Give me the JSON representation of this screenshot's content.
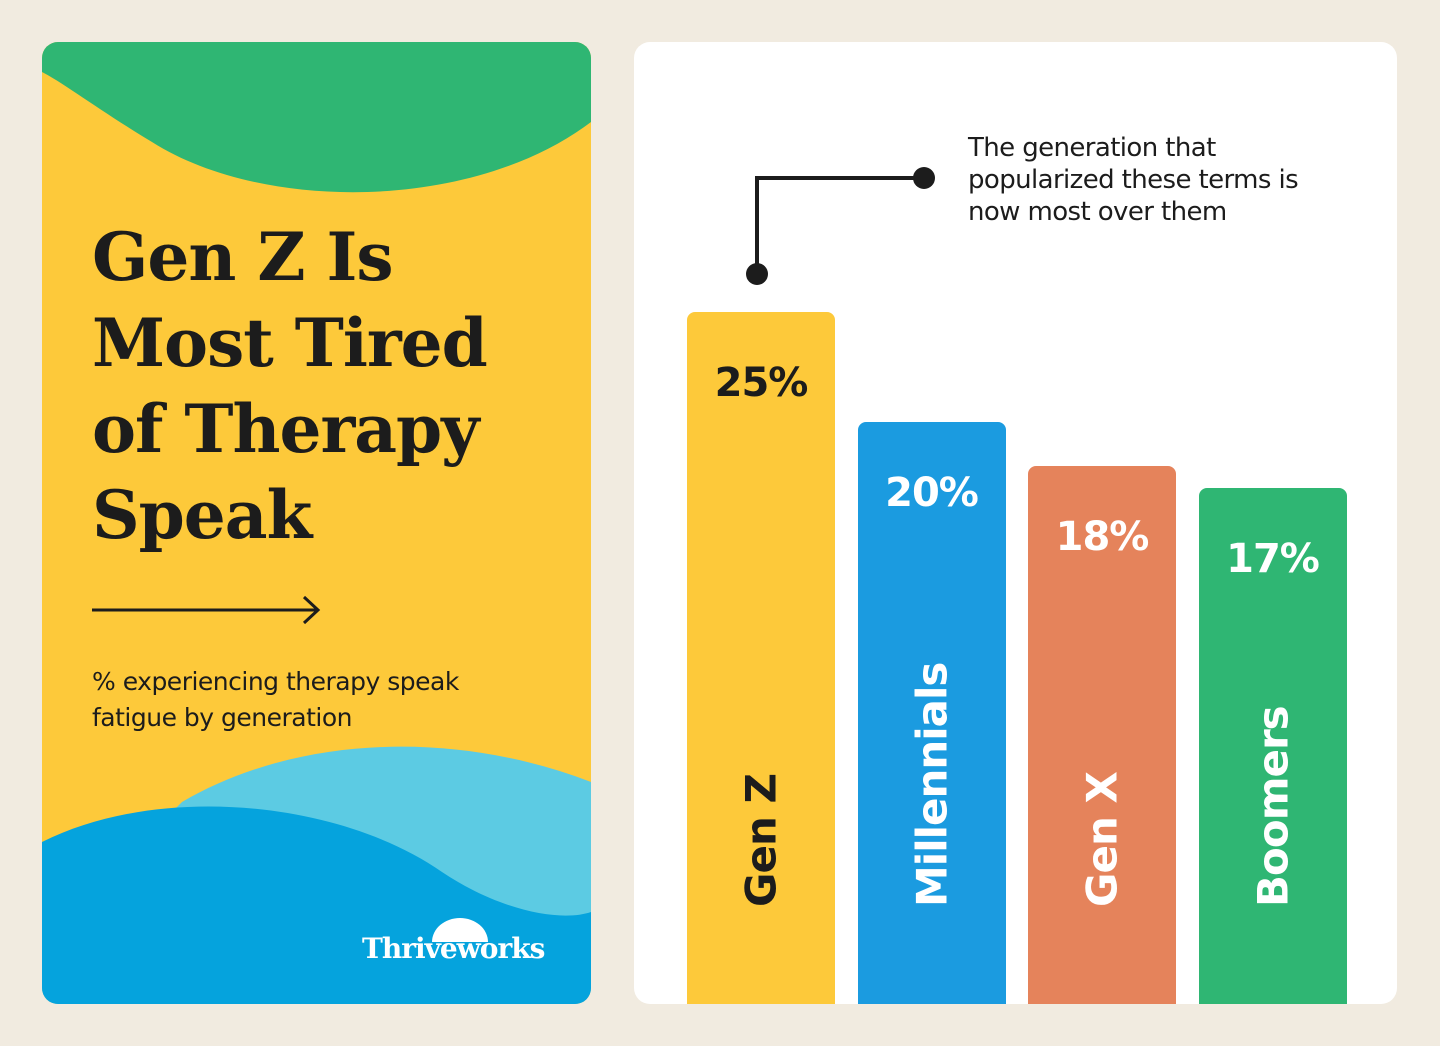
{
  "title": "Gen Z Is Most Tired of Therapy Speak",
  "subtitle": "% experiencing therapy speak fatigue by generation",
  "logo": "Thriveworks",
  "colors": {
    "background": "#f1ebe0",
    "panel": "#fdc93a",
    "green": "#2fb673",
    "light_blue": "#5ccbe3",
    "blue": "#05a3dd"
  },
  "chart_data": {
    "type": "bar",
    "title": "",
    "annotation": "The generation that popularized these terms is now most over them",
    "categories": [
      "Gen Z",
      "Millennials",
      "Gen X",
      "Boomers"
    ],
    "values": [
      25,
      20,
      18,
      17
    ],
    "value_labels": [
      "25%",
      "20%",
      "18%",
      "17%"
    ],
    "bar_colors": [
      "#fdc93a",
      "#1b9be0",
      "#e5835b",
      "#2fb673"
    ],
    "label_colors": [
      "#1c1c1c",
      "#ffffff",
      "#ffffff",
      "#ffffff"
    ],
    "grid": false
  }
}
